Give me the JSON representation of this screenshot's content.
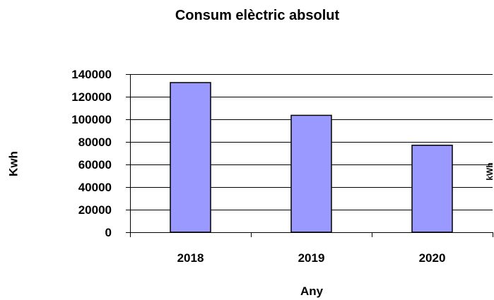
{
  "chart_data": {
    "type": "bar",
    "title": "Consum elèctric absolut",
    "xlabel": "Any",
    "ylabel": "Kwh",
    "secondary_ylabel": "kWh",
    "categories": [
      "2018",
      "2019",
      "2020"
    ],
    "values": [
      132500,
      103500,
      77000
    ],
    "ylim": [
      0,
      140000
    ],
    "yticks": [
      "0",
      "20000",
      "40000",
      "60000",
      "80000",
      "100000",
      "120000",
      "140000"
    ],
    "grid": true,
    "legend": "none",
    "bar_color": "#9999ff",
    "bar_edge_color": "#000000",
    "grid_color": "#000000"
  }
}
